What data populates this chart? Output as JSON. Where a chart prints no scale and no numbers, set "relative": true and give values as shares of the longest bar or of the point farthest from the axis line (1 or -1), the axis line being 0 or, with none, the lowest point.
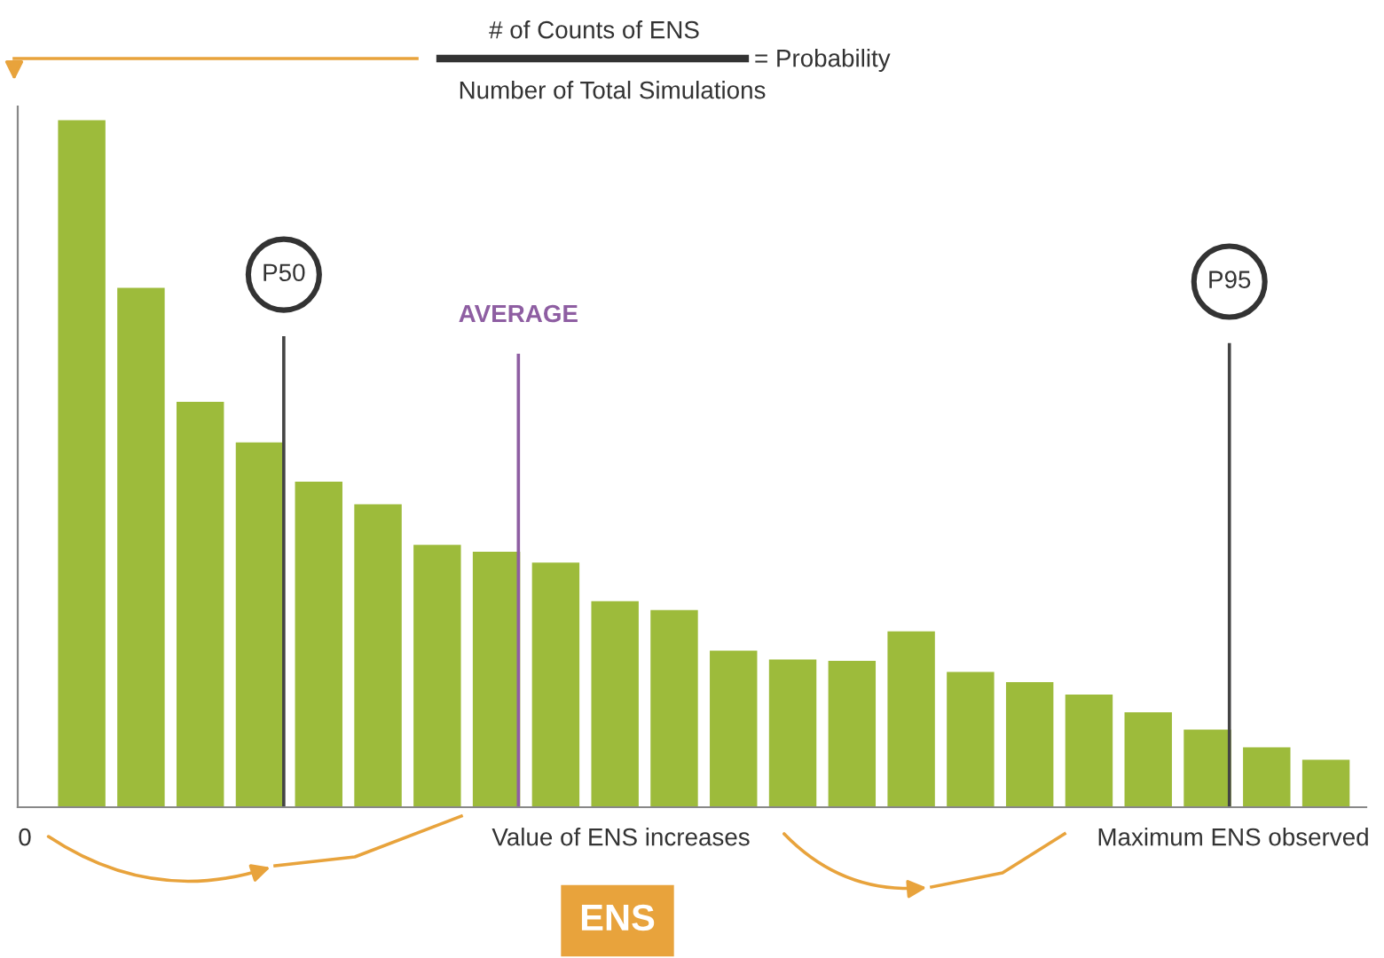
{
  "chart_data": {
    "type": "bar",
    "relative": true,
    "categories": [
      null,
      null,
      null,
      null,
      null,
      null,
      null,
      null,
      null,
      null,
      null,
      null,
      null,
      null,
      null,
      null,
      null,
      null,
      null,
      null,
      null,
      null
    ],
    "values": [
      1,
      0.756,
      0.59,
      0.531,
      0.474,
      0.441,
      0.382,
      0.372,
      0.356,
      0.3,
      0.287,
      0.228,
      0.215,
      0.213,
      0.256,
      0.197,
      0.182,
      0.164,
      0.138,
      0.113,
      0.087,
      0.069
    ],
    "color": "#9dbb3b",
    "annotations": [
      "# of Counts of ENS",
      "Number of Total Simulations",
      "= Probability",
      "0",
      "Value of ENS increases",
      "Maximum ENS observed",
      "ENS",
      "P50",
      "AVERAGE",
      "P95"
    ],
    "grid": false,
    "legend": false
  }
}
